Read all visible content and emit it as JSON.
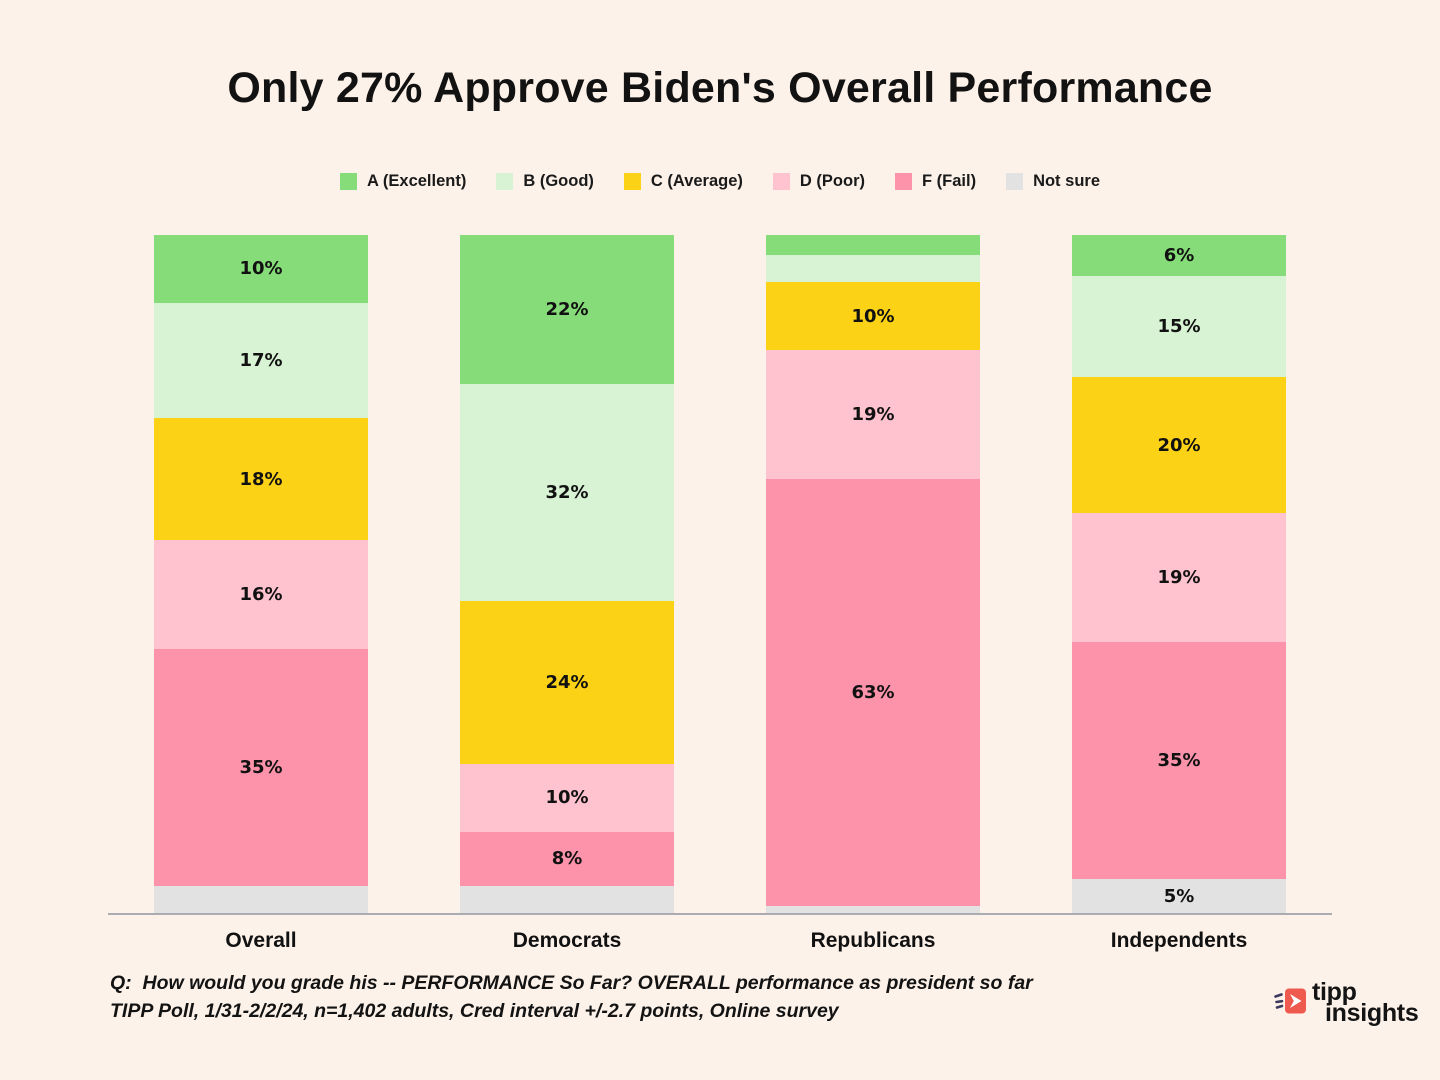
{
  "title": "Only 27% Approve Biden's Overall Performance",
  "chart_data": {
    "type": "stacked-bar",
    "title": "Only 27% Approve Biden's Overall Performance",
    "categories": [
      "Overall",
      "Democrats",
      "Republicans",
      "Independents"
    ],
    "series": [
      {
        "name": "A (Excellent)",
        "color": "#85DC78",
        "values": [
          10,
          22,
          3,
          6
        ]
      },
      {
        "name": "B (Good)",
        "color": "#D8F2D4",
        "values": [
          17,
          32,
          4,
          15
        ]
      },
      {
        "name": "C (Average)",
        "color": "#FCD216",
        "values": [
          18,
          24,
          10,
          20
        ]
      },
      {
        "name": "D (Poor)",
        "color": "#FFC3D0",
        "values": [
          16,
          10,
          19,
          19
        ]
      },
      {
        "name": "F (Fail)",
        "color": "#FC93AB",
        "values": [
          35,
          8,
          63,
          35
        ]
      },
      {
        "name": "Not sure",
        "color": "#E2E2E2",
        "values": [
          4,
          4,
          1,
          5
        ]
      }
    ],
    "value_suffix": "%",
    "label_min_value": 5,
    "ylim": [
      0,
      100
    ],
    "grid": false,
    "legend_position": "top",
    "xlabel": "",
    "ylabel": ""
  },
  "footer": {
    "question": "Q:  How would you grade his -- PERFORMANCE So Far? OVERALL performance as president so far",
    "methodology": "TIPP Poll, 1/31-2/2/24, n=1,402 adults, Cred interval +/-2.7 points, Online survey"
  },
  "logo": {
    "line1": "tipp",
    "line2": "insights",
    "icon": "tipp-arrow-icon",
    "text_color": "#3C3A5E",
    "icon_color": "#EF5A4E"
  },
  "colors": {
    "background": "#FDF2EA",
    "axis_line": "#ABACB2",
    "text": "#141414"
  }
}
